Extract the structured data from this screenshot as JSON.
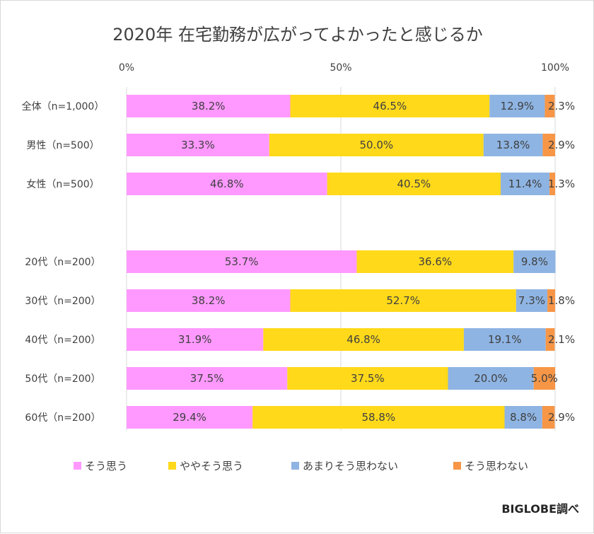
{
  "chart_data": {
    "type": "bar",
    "orientation": "horizontal",
    "stacked": "percent",
    "title": "2020年 在宅勤務が広がってよかったと感じるか",
    "xlim": [
      0,
      100
    ],
    "x_ticks": [
      "0%",
      "50%",
      "100%"
    ],
    "grid": true,
    "legend_position": "bottom",
    "categories": [
      "全体（n=1,000）",
      "男性（n=500）",
      "女性（n=500）",
      "20代（n=200）",
      "30代（n=200）",
      "40代（n=200）",
      "50代（n=200）",
      "60代（n=200）"
    ],
    "series": [
      {
        "name": "そう思う",
        "color": "#ff99ff",
        "values": [
          38.2,
          33.3,
          46.8,
          53.7,
          38.2,
          31.9,
          37.5,
          29.4
        ],
        "labels": [
          "38.2%",
          "33.3%",
          "46.8%",
          "53.7%",
          "38.2%",
          "31.9%",
          "37.5%",
          "29.4%"
        ]
      },
      {
        "name": "ややそう思う",
        "color": "#ffd91a",
        "values": [
          46.5,
          50.0,
          40.5,
          36.6,
          52.7,
          46.8,
          37.5,
          58.8
        ],
        "labels": [
          "46.5%",
          "50.0%",
          "40.5%",
          "36.6%",
          "52.7%",
          "46.8%",
          "37.5%",
          "58.8%"
        ]
      },
      {
        "name": "あまりそう思わない",
        "color": "#8eb4e3",
        "values": [
          12.9,
          13.8,
          11.4,
          9.8,
          7.3,
          19.1,
          20.0,
          8.8
        ],
        "labels": [
          "12.9%",
          "13.8%",
          "11.4%",
          "9.8%",
          "7.3%",
          "19.1%",
          "20.0%",
          "8.8%"
        ]
      },
      {
        "name": "そう思わない",
        "color": "#f79646",
        "values": [
          2.3,
          2.9,
          1.3,
          0,
          1.8,
          2.1,
          5.0,
          2.9
        ],
        "labels": [
          "2.3%",
          "2.9%",
          "1.3%",
          "",
          "1.8%",
          "2.1%",
          "5.0%",
          "2.9%"
        ]
      }
    ]
  },
  "credit": "BIGLOBE調べ"
}
